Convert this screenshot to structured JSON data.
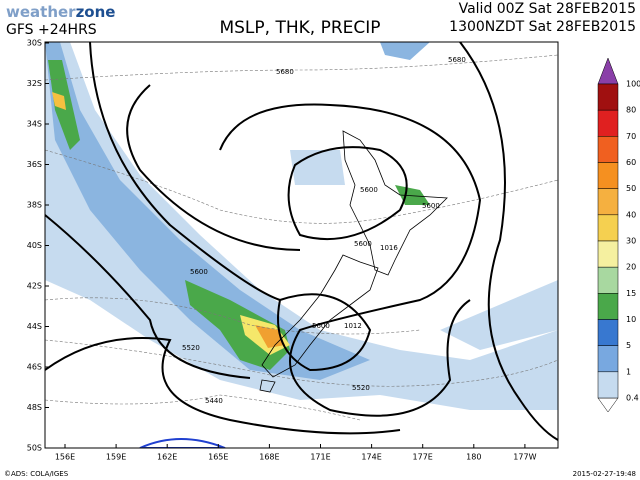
{
  "header": {
    "logo": [
      "weather",
      "zone"
    ],
    "model": "GFS +24HRS",
    "title": "MSLP, THK, PRECIP",
    "valid": "Valid 00Z Sat 28FEB2015",
    "local": "1300NZDT Sat 28FEB2015"
  },
  "axes": {
    "lat": [
      "30S",
      "32S",
      "34S",
      "36S",
      "38S",
      "40S",
      "42S",
      "44S",
      "46S",
      "48S",
      "50S"
    ],
    "lon": [
      "156E",
      "159E",
      "162E",
      "165E",
      "168E",
      "171E",
      "174E",
      "177E",
      "180",
      "177W"
    ]
  },
  "contours": [
    "5680",
    "5680",
    "5600",
    "5600",
    "5600",
    "1016",
    "5600",
    "5600",
    "1012",
    "5520",
    "5520",
    "5440"
  ],
  "legend": {
    "labels": [
      "100",
      "80",
      "70",
      "60",
      "50",
      "40",
      "30",
      "20",
      "15",
      "10",
      "5",
      "1",
      "0.4"
    ]
  },
  "footer": {
    "credit": "©ADS: COLA/IGES",
    "timestamp": "2015-02-27-19:48"
  }
}
